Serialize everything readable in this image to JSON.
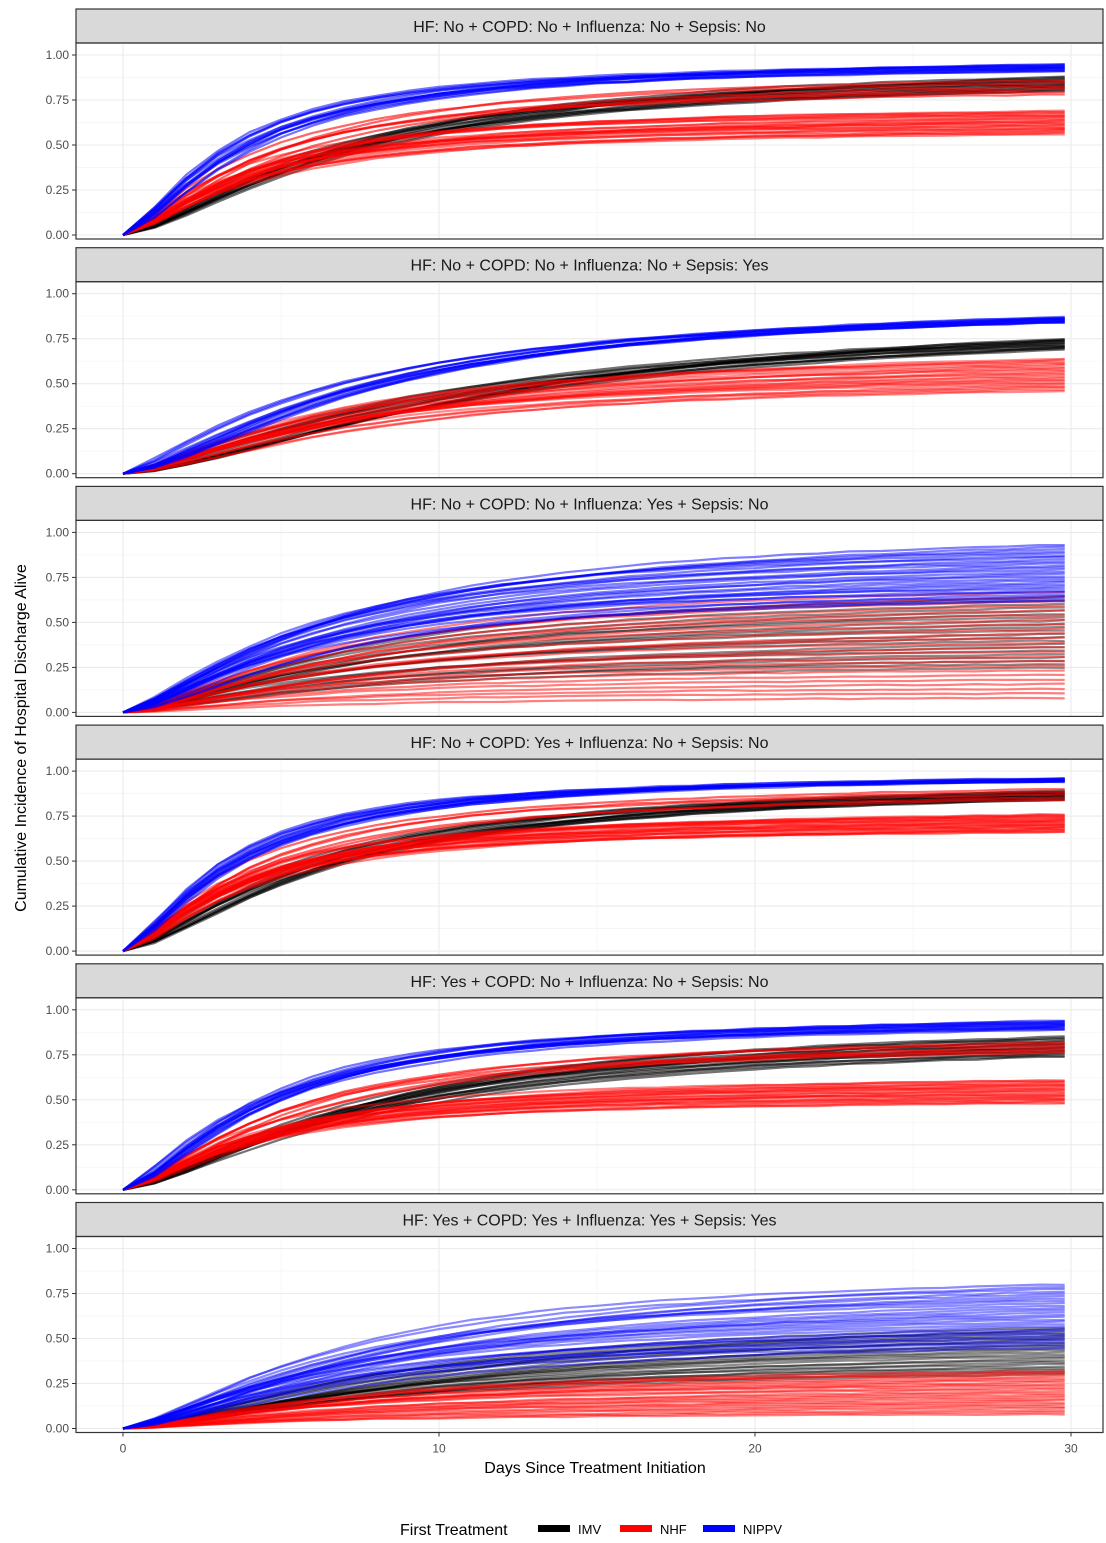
{
  "chart_data": {
    "type": "line",
    "xlabel": "Days Since Treatment Initiation",
    "ylabel": "Cumulative Incidence of Hospital Discharge Alive",
    "xlim": [
      0,
      30
    ],
    "ylim": [
      0,
      1
    ],
    "x_ticks": [
      0,
      10,
      20,
      30
    ],
    "y_ticks": [
      0.0,
      0.25,
      0.5,
      0.75,
      1.0
    ],
    "x_tick_labels": [
      "0",
      "10",
      "20",
      "30"
    ],
    "y_tick_labels": [
      "0.00",
      "0.25",
      "0.50",
      "0.75",
      "1.00"
    ],
    "grid": true,
    "legend": {
      "title": "First Treatment",
      "position": "bottom",
      "entries": [
        {
          "label": "IMV",
          "color": "#000000"
        },
        {
          "label": "NHF",
          "color": "#ff0000"
        },
        {
          "label": "NIPPV",
          "color": "#0000ff"
        }
      ]
    },
    "series_colors": {
      "IMV": "#000000",
      "NHF": "#ff0000",
      "NIPPV": "#0000ff"
    },
    "x": [
      0,
      1,
      2,
      3,
      4,
      5,
      6,
      7,
      8,
      9,
      10,
      11,
      12,
      13,
      14,
      15,
      16,
      17,
      18,
      19,
      20,
      21,
      22,
      23,
      24,
      25,
      26,
      27,
      28,
      29,
      29.8
    ],
    "facets": [
      {
        "strip": "HF: No + COPD: No + Influenza: No + Sepsis: No",
        "series": [
          {
            "name": "IMV",
            "final": [
              0.8,
              0.88
            ],
            "half_day": 7.0,
            "n": 14,
            "opacity": 0.55
          },
          {
            "name": "NHF",
            "final": [
              0.56,
              0.69
            ],
            "half_day": 3.9,
            "n": 22,
            "opacity": 0.5
          },
          {
            "name": "NHF",
            "final": [
              0.78,
              0.86
            ],
            "half_day": 4.6,
            "n": 6,
            "opacity": 0.6
          },
          {
            "name": "NIPPV",
            "final": [
              0.91,
              0.95
            ],
            "half_day": 3.7,
            "n": 14,
            "opacity": 0.55
          }
        ]
      },
      {
        "strip": "HF: No + COPD: No + Influenza: No + Sepsis: Yes",
        "series": [
          {
            "name": "IMV",
            "final": [
              0.69,
              0.75
            ],
            "half_day": 11.5,
            "n": 14,
            "opacity": 0.55
          },
          {
            "name": "NHF",
            "final": [
              0.46,
              0.64
            ],
            "half_day": 7.2,
            "n": 24,
            "opacity": 0.45
          },
          {
            "name": "NIPPV",
            "final": [
              0.84,
              0.87
            ],
            "half_day": 7.3,
            "n": 14,
            "opacity": 0.55
          }
        ]
      },
      {
        "strip": "HF: No + COPD: No + Influenza: Yes + Sepsis: No",
        "series": [
          {
            "name": "IMV",
            "final": [
              0.25,
              0.64
            ],
            "half_day": 7.5,
            "n": 22,
            "opacity": 0.45
          },
          {
            "name": "NHF",
            "final": [
              0.08,
              0.67
            ],
            "half_day": 7.0,
            "n": 24,
            "opacity": 0.5
          },
          {
            "name": "NIPPV",
            "final": [
              0.62,
              0.93
            ],
            "half_day": 6.2,
            "n": 28,
            "opacity": 0.5
          }
        ]
      },
      {
        "strip": "HF: No + COPD: Yes + Influenza: No + Sepsis: No",
        "series": [
          {
            "name": "IMV",
            "final": [
              0.84,
              0.89
            ],
            "half_day": 6.0,
            "n": 14,
            "opacity": 0.55
          },
          {
            "name": "NHF",
            "final": [
              0.66,
              0.76
            ],
            "half_day": 3.7,
            "n": 22,
            "opacity": 0.5
          },
          {
            "name": "NHF",
            "final": [
              0.84,
              0.9
            ],
            "half_day": 4.0,
            "n": 5,
            "opacity": 0.6
          },
          {
            "name": "NIPPV",
            "final": [
              0.94,
              0.96
            ],
            "half_day": 3.5,
            "n": 14,
            "opacity": 0.55
          }
        ]
      },
      {
        "strip": "HF: Yes + COPD: No + Influenza: No + Sepsis: No",
        "series": [
          {
            "name": "IMV",
            "final": [
              0.74,
              0.85
            ],
            "half_day": 7.8,
            "n": 16,
            "opacity": 0.55
          },
          {
            "name": "NHF",
            "final": [
              0.48,
              0.61
            ],
            "half_day": 4.2,
            "n": 22,
            "opacity": 0.5
          },
          {
            "name": "NHF",
            "final": [
              0.76,
              0.82
            ],
            "half_day": 5.2,
            "n": 6,
            "opacity": 0.6
          },
          {
            "name": "NIPPV",
            "final": [
              0.89,
              0.94
            ],
            "half_day": 4.3,
            "n": 14,
            "opacity": 0.55
          }
        ]
      },
      {
        "strip": "HF: Yes + COPD: Yes + Influenza: Yes + Sepsis: Yes",
        "series": [
          {
            "name": "IMV",
            "final": [
              0.3,
              0.56
            ],
            "half_day": 9.5,
            "n": 24,
            "opacity": 0.45
          },
          {
            "name": "NHF",
            "final": [
              0.08,
              0.32
            ],
            "half_day": 7.0,
            "n": 24,
            "opacity": 0.5
          },
          {
            "name": "NIPPV",
            "final": [
              0.45,
              0.8
            ],
            "half_day": 7.5,
            "n": 28,
            "opacity": 0.45
          }
        ]
      }
    ]
  }
}
